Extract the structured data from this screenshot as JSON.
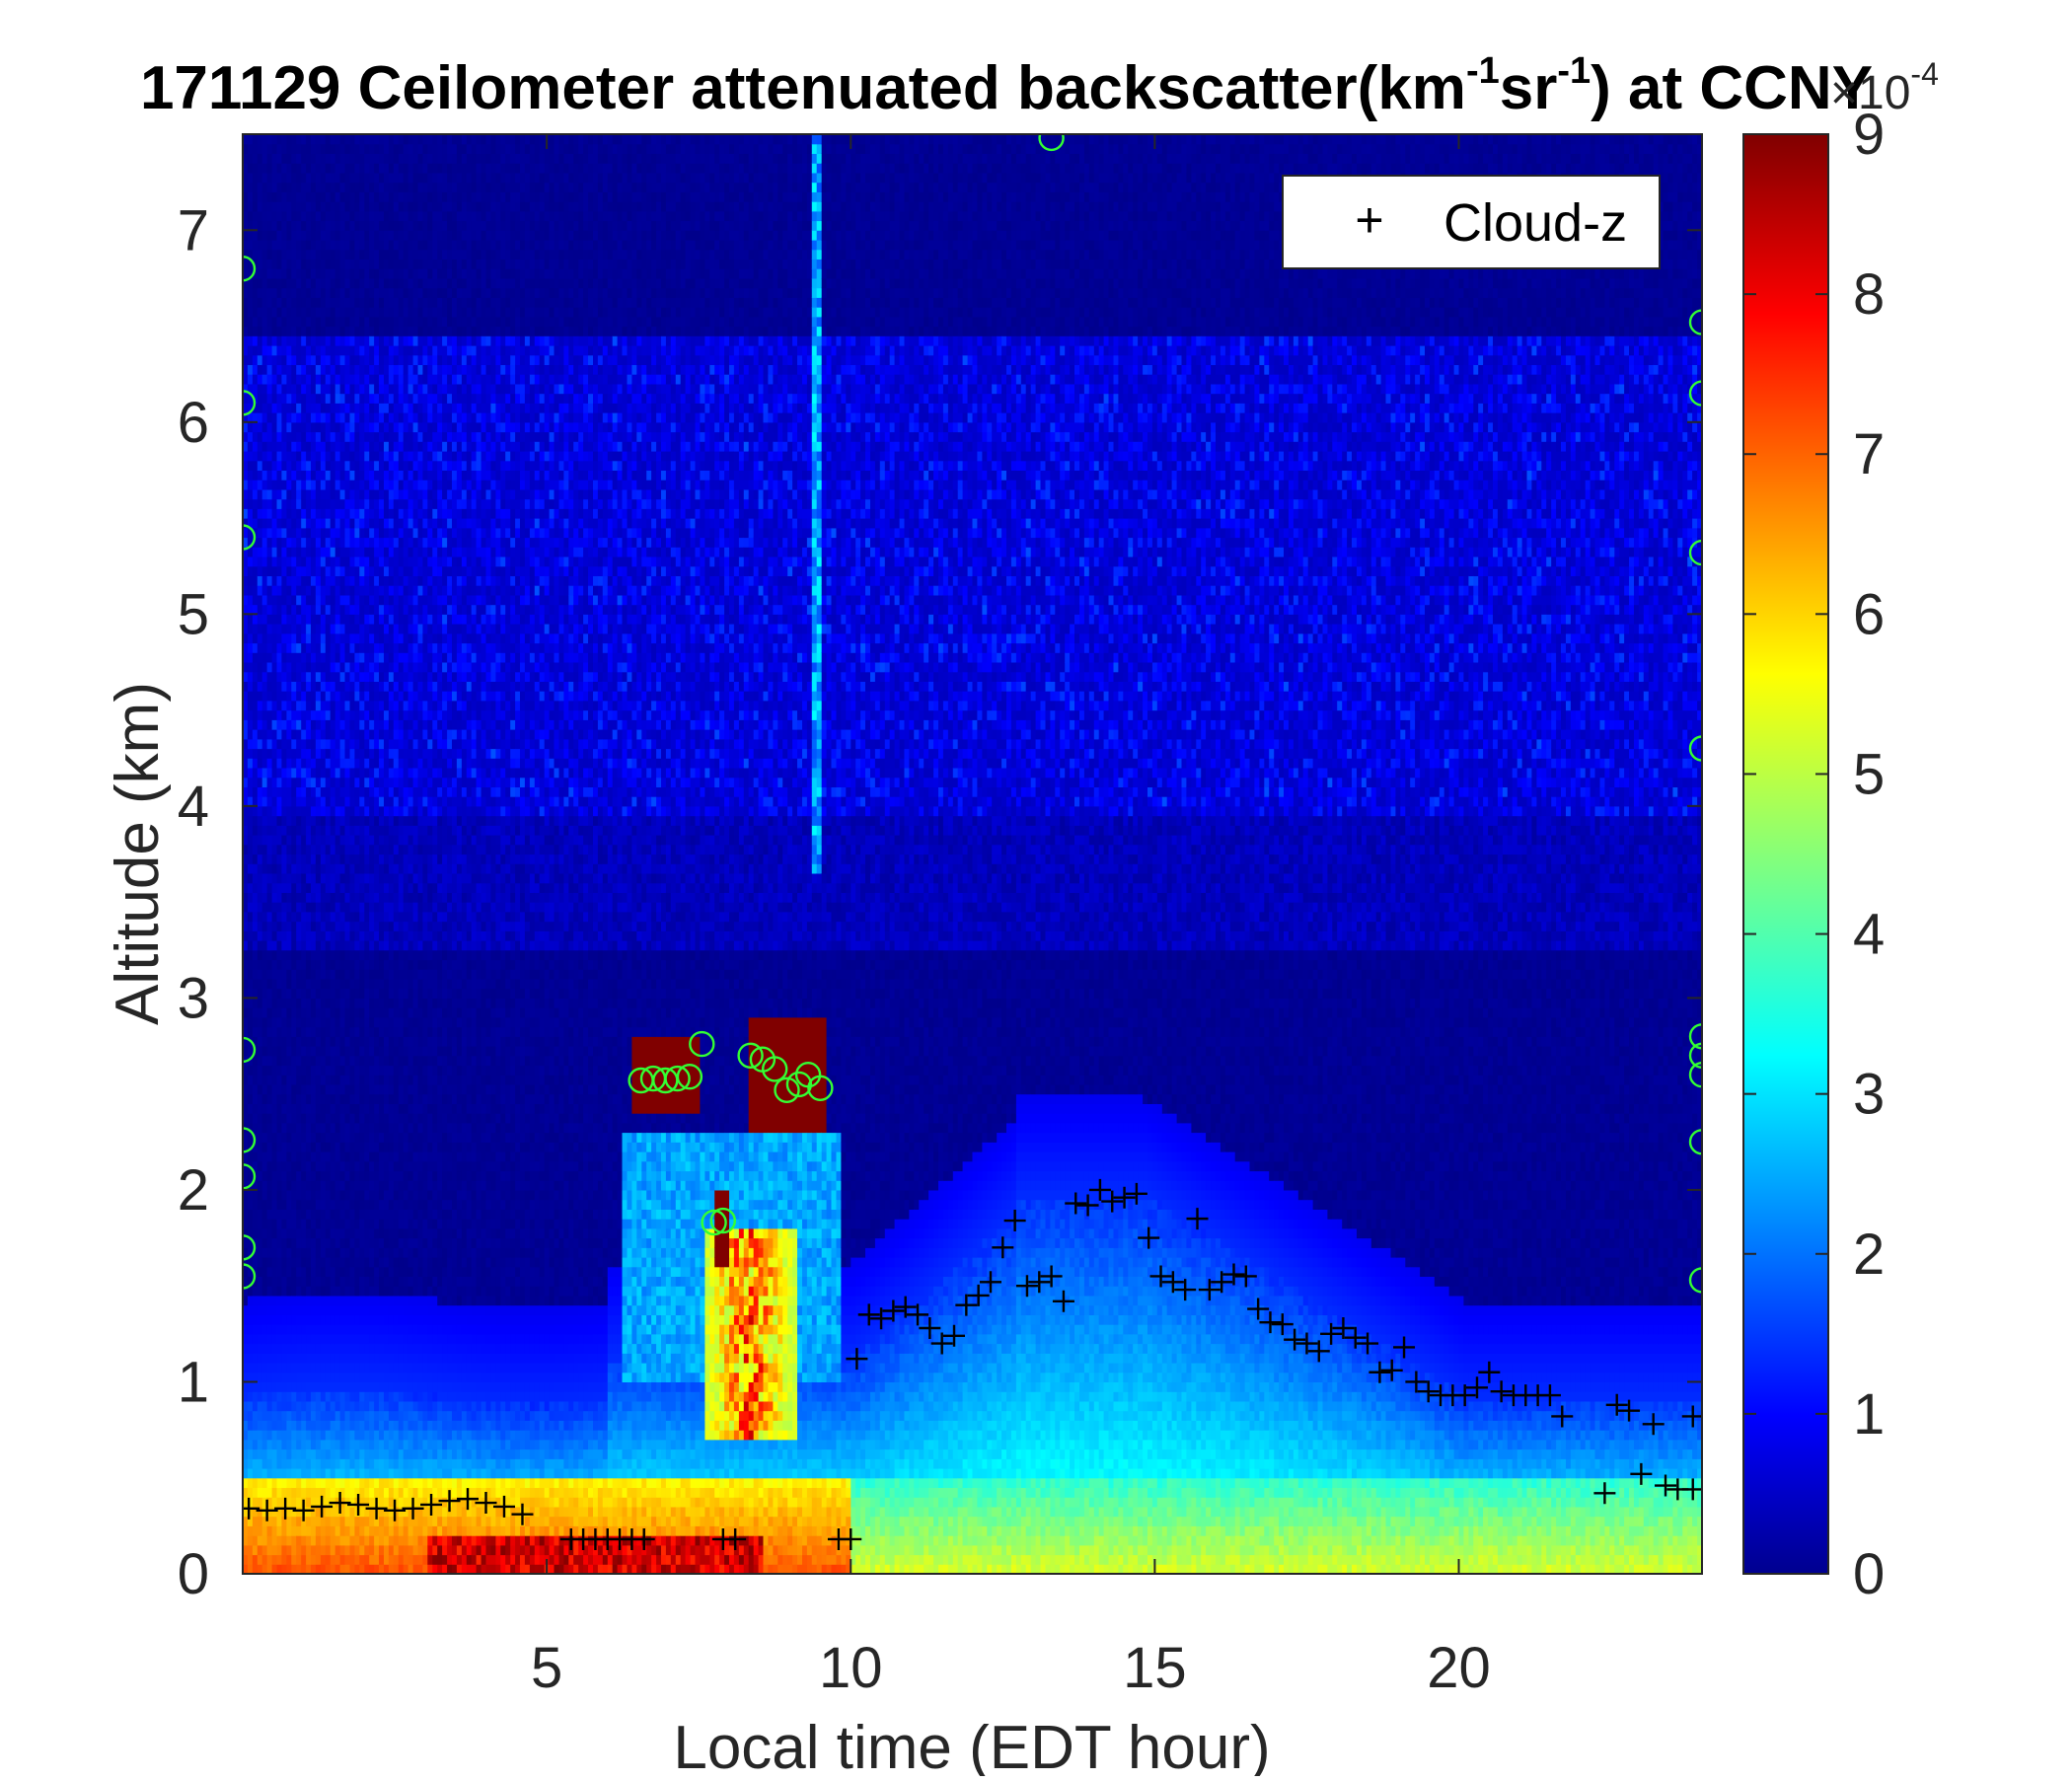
{
  "chart_data": {
    "type": "heatmap",
    "title_main": "171129 Ceilometer attenuated backscatter(km",
    "title_sup1": "-1",
    "title_mid": "sr",
    "title_sup2": "-1",
    "title_tail": ") at CCNY",
    "xlabel": "Local time (EDT hour)",
    "ylabel": "Altitude (km)",
    "xlim": [
      0,
      24
    ],
    "ylim": [
      0,
      7.5
    ],
    "xticks": [
      "5",
      "10",
      "15",
      "20"
    ],
    "xtick_values": [
      5,
      10,
      15,
      20
    ],
    "yticks": [
      "0",
      "1",
      "2",
      "3",
      "4",
      "5",
      "6",
      "7"
    ],
    "ytick_values": [
      0,
      1,
      2,
      3,
      4,
      5,
      6,
      7
    ],
    "colormap": "jet",
    "colorbar": {
      "range": [
        0,
        9
      ],
      "ticks": [
        "0",
        "1",
        "2",
        "3",
        "4",
        "5",
        "6",
        "7",
        "8",
        "9"
      ],
      "tick_values": [
        0,
        1,
        2,
        3,
        4,
        5,
        6,
        7,
        8,
        9
      ],
      "exponent_base": "×10",
      "exponent_power": "-4"
    },
    "legend": {
      "label": "Cloud-z",
      "marker": "+",
      "placement": "top-right"
    },
    "cloud_z": [
      [
        0.1,
        0.34
      ],
      [
        0.4,
        0.33
      ],
      [
        0.7,
        0.34
      ],
      [
        1.0,
        0.33
      ],
      [
        1.3,
        0.35
      ],
      [
        1.6,
        0.37
      ],
      [
        1.9,
        0.36
      ],
      [
        2.2,
        0.34
      ],
      [
        2.5,
        0.33
      ],
      [
        2.8,
        0.34
      ],
      [
        3.1,
        0.36
      ],
      [
        3.4,
        0.38
      ],
      [
        3.7,
        0.39
      ],
      [
        4.0,
        0.37
      ],
      [
        4.3,
        0.35
      ],
      [
        4.6,
        0.31
      ],
      [
        5.4,
        0.18
      ],
      [
        5.6,
        0.18
      ],
      [
        5.8,
        0.18
      ],
      [
        6.0,
        0.18
      ],
      [
        6.2,
        0.18
      ],
      [
        6.4,
        0.18
      ],
      [
        6.6,
        0.18
      ],
      [
        7.9,
        0.18
      ],
      [
        8.1,
        0.18
      ],
      [
        9.8,
        0.18
      ],
      [
        10.0,
        0.18
      ],
      [
        10.1,
        1.12
      ],
      [
        10.3,
        1.35
      ],
      [
        10.5,
        1.33
      ],
      [
        10.7,
        1.37
      ],
      [
        10.9,
        1.39
      ],
      [
        11.1,
        1.35
      ],
      [
        11.3,
        1.28
      ],
      [
        11.5,
        1.2
      ],
      [
        11.7,
        1.24
      ],
      [
        11.9,
        1.4
      ],
      [
        12.1,
        1.45
      ],
      [
        12.3,
        1.52
      ],
      [
        12.5,
        1.7
      ],
      [
        12.7,
        1.84
      ],
      [
        12.9,
        1.5
      ],
      [
        13.1,
        1.52
      ],
      [
        13.3,
        1.55
      ],
      [
        13.5,
        1.42
      ],
      [
        13.7,
        1.93
      ],
      [
        13.9,
        1.92
      ],
      [
        14.1,
        2.0
      ],
      [
        14.3,
        1.94
      ],
      [
        14.5,
        1.96
      ],
      [
        14.7,
        1.98
      ],
      [
        14.9,
        1.75
      ],
      [
        15.1,
        1.55
      ],
      [
        15.3,
        1.52
      ],
      [
        15.5,
        1.48
      ],
      [
        15.7,
        1.85
      ],
      [
        15.9,
        1.48
      ],
      [
        16.1,
        1.52
      ],
      [
        16.3,
        1.56
      ],
      [
        16.5,
        1.55
      ],
      [
        16.7,
        1.38
      ],
      [
        16.9,
        1.31
      ],
      [
        17.1,
        1.3
      ],
      [
        17.3,
        1.22
      ],
      [
        17.5,
        1.2
      ],
      [
        17.7,
        1.16
      ],
      [
        17.9,
        1.25
      ],
      [
        18.1,
        1.28
      ],
      [
        18.3,
        1.23
      ],
      [
        18.5,
        1.2
      ],
      [
        18.7,
        1.05
      ],
      [
        18.9,
        1.06
      ],
      [
        19.1,
        1.18
      ],
      [
        19.3,
        1.0
      ],
      [
        19.5,
        0.95
      ],
      [
        19.7,
        0.93
      ],
      [
        19.9,
        0.93
      ],
      [
        20.1,
        0.93
      ],
      [
        20.3,
        0.97
      ],
      [
        20.5,
        1.05
      ],
      [
        20.7,
        0.95
      ],
      [
        20.9,
        0.93
      ],
      [
        21.1,
        0.93
      ],
      [
        21.3,
        0.93
      ],
      [
        21.5,
        0.93
      ],
      [
        21.7,
        0.82
      ],
      [
        22.4,
        0.42
      ],
      [
        22.6,
        0.88
      ],
      [
        22.8,
        0.85
      ],
      [
        23.0,
        0.52
      ],
      [
        23.2,
        0.78
      ],
      [
        23.4,
        0.46
      ],
      [
        23.6,
        0.44
      ],
      [
        23.85,
        0.82
      ],
      [
        23.85,
        0.44
      ]
    ],
    "cloud_base_circles": [
      [
        6.55,
        2.57
      ],
      [
        6.75,
        2.58
      ],
      [
        6.95,
        2.57
      ],
      [
        7.15,
        2.58
      ],
      [
        7.35,
        2.59
      ],
      [
        7.55,
        2.76
      ],
      [
        7.75,
        1.83
      ],
      [
        7.9,
        1.84
      ],
      [
        8.35,
        2.7
      ],
      [
        8.55,
        2.68
      ],
      [
        8.75,
        2.63
      ],
      [
        8.95,
        2.52
      ],
      [
        9.15,
        2.55
      ],
      [
        9.3,
        2.6
      ],
      [
        9.5,
        2.53
      ],
      [
        0.0,
        6.8
      ],
      [
        0.0,
        6.1
      ],
      [
        0.0,
        5.4
      ],
      [
        0.0,
        2.73
      ],
      [
        0.0,
        2.26
      ],
      [
        0.0,
        2.07
      ],
      [
        0.0,
        1.7
      ],
      [
        0.0,
        1.55
      ],
      [
        24.0,
        6.52
      ],
      [
        24.0,
        6.15
      ],
      [
        24.0,
        5.32
      ],
      [
        24.0,
        4.3
      ],
      [
        24.0,
        2.8
      ],
      [
        24.0,
        2.7
      ],
      [
        24.0,
        2.6
      ],
      [
        24.0,
        2.25
      ],
      [
        24.0,
        1.53
      ],
      [
        13.3,
        7.48
      ]
    ]
  }
}
